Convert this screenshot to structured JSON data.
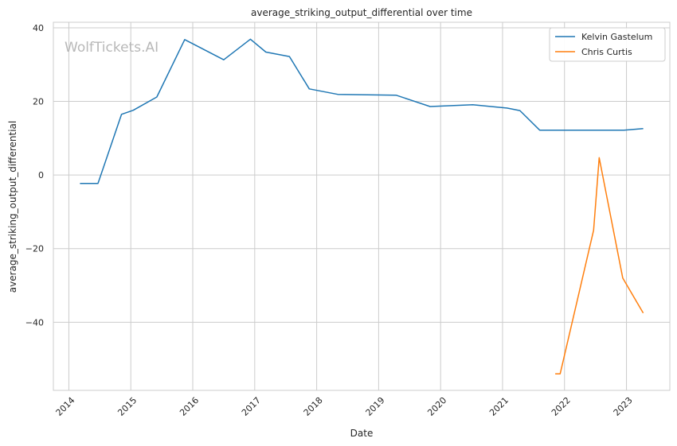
{
  "chart_data": {
    "type": "line",
    "title": "average_striking_output_differential over time",
    "xlabel": "Date",
    "ylabel": "average_striking_output_differential",
    "watermark": "WolfTickets.AI",
    "x_ticks": [
      "2014",
      "2015",
      "2016",
      "2017",
      "2018",
      "2019",
      "2020",
      "2021",
      "2022",
      "2023"
    ],
    "y_ticks": [
      40,
      20,
      0,
      -20,
      -40
    ],
    "xlim": [
      2013.75,
      2023.7
    ],
    "ylim": [
      -58.5,
      41.5
    ],
    "grid": true,
    "legend_position": "top-right",
    "series": [
      {
        "name": "Kelvin Gastelum",
        "color": "#1f77b4",
        "points": [
          [
            2014.18,
            -2.3
          ],
          [
            2014.47,
            -2.3
          ],
          [
            2014.85,
            16.5
          ],
          [
            2015.04,
            17.6
          ],
          [
            2015.42,
            21.2
          ],
          [
            2015.87,
            36.8
          ],
          [
            2016.5,
            31.3
          ],
          [
            2016.93,
            36.9
          ],
          [
            2017.18,
            33.4
          ],
          [
            2017.56,
            32.2
          ],
          [
            2017.88,
            23.4
          ],
          [
            2018.34,
            21.9
          ],
          [
            2019.28,
            21.7
          ],
          [
            2019.83,
            18.6
          ],
          [
            2020.52,
            19.1
          ],
          [
            2021.07,
            18.2
          ],
          [
            2021.28,
            17.5
          ],
          [
            2021.6,
            12.2
          ],
          [
            2022.96,
            12.2
          ],
          [
            2023.27,
            12.6
          ]
        ]
      },
      {
        "name": "Chris Curtis",
        "color": "#ff7f0e",
        "points": [
          [
            2021.85,
            -54.0
          ],
          [
            2021.93,
            -54.0
          ],
          [
            2022.47,
            -15.0
          ],
          [
            2022.56,
            4.7
          ],
          [
            2022.94,
            -28.0
          ],
          [
            2023.27,
            -37.5
          ]
        ]
      }
    ]
  }
}
